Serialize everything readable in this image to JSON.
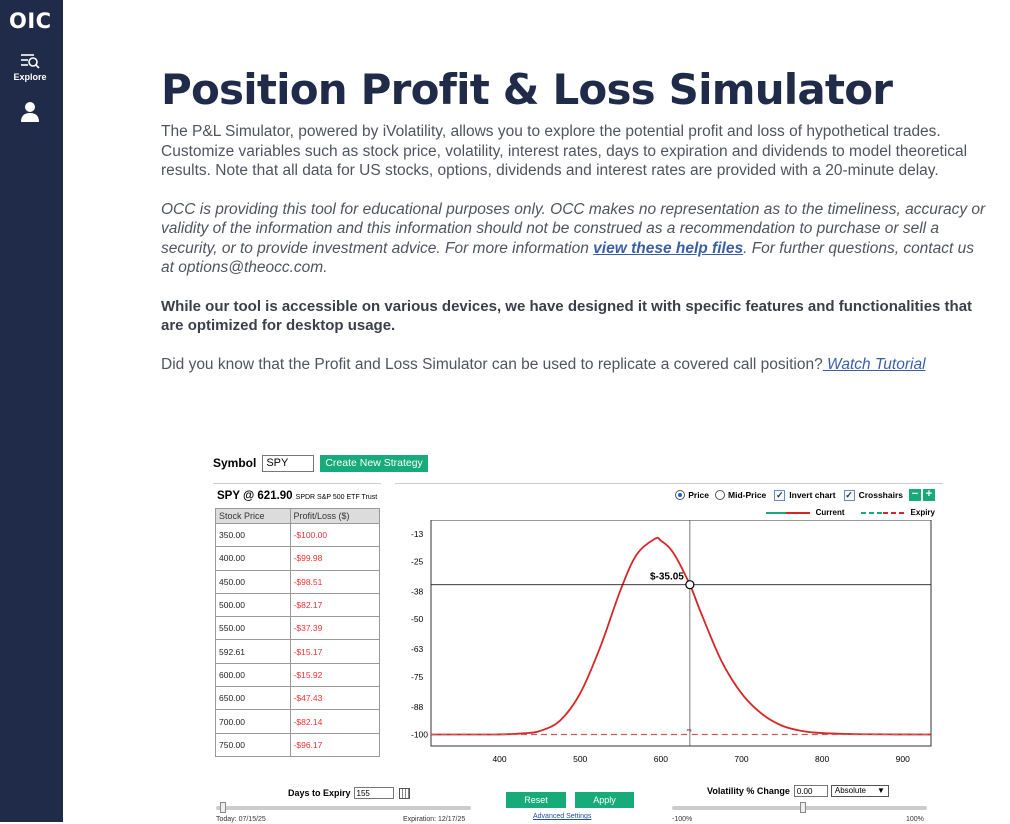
{
  "sidebar": {
    "logo": "OIC",
    "explore_label": "Explore"
  },
  "header": {
    "title": "Position Profit & Loss Simulator"
  },
  "intro": {
    "p1": "The P&L Simulator, powered by iVolatility, allows you to explore the potential profit and loss of hypothetical trades. Customize variables such as stock price, volatility, interest rates, days to expiration and dividends to model theoretical results. Note that all data for US stocks, options, dividends and interest rates are provided with a 20-minute delay.",
    "p2_before": "OCC is providing this tool for educational purposes only. OCC makes no representation as to the timeliness, accuracy or validity of the information and this information should not be construed as a recommendation to purchase or sell a security, or to provide investment advice. For more information ",
    "p2_link": "view these help files",
    "p2_after": ". For further questions, contact us at options@theocc.com.",
    "p3": "While our tool is accessible on various devices, we have designed it with specific features and functionalities that are optimized for desktop usage.",
    "p4_before": "Did you know that the Profit and Loss Simulator can be used to replicate a covered call position?",
    "p4_link": " Watch Tutorial"
  },
  "simulator": {
    "symbol_label": "Symbol",
    "symbol_value": "SPY",
    "create_button": "Create New Strategy",
    "quote_symbol": "SPY @ 621.90",
    "quote_name": "SPDR S&P 500 ETF Trust",
    "table": {
      "headers": [
        "Stock Price",
        "Profit/Loss ($)"
      ],
      "rows": [
        [
          "350.00",
          "-$100.00"
        ],
        [
          "400.00",
          "-$99.98"
        ],
        [
          "450.00",
          "-$98.51"
        ],
        [
          "500.00",
          "-$82.17"
        ],
        [
          "550.00",
          "-$37.39"
        ],
        [
          "592.61",
          "-$15.17"
        ],
        [
          "600.00",
          "-$15.92"
        ],
        [
          "650.00",
          "-$47.43"
        ],
        [
          "700.00",
          "-$82.14"
        ],
        [
          "750.00",
          "-$96.17"
        ]
      ]
    },
    "controls": {
      "price": "Price",
      "mid_price": "Mid-Price",
      "invert": "Invert chart",
      "crosshairs": "Crosshairs",
      "zoom_out": "−",
      "zoom_in": "+",
      "legend_current": "Current",
      "legend_expiry": "Expiry"
    },
    "bottom": {
      "dte_label": "Days to Expiry",
      "dte_value": "155",
      "today_label": "Today: 07/15/25",
      "expiration_label": "Expiration: 12/17/25",
      "reset": "Reset",
      "apply": "Apply",
      "advanced": "Advanced Settings",
      "vol_label": "Volatility % Change",
      "vol_value": "0.00",
      "vol_mode": "Absolute",
      "vol_min": "-100%",
      "vol_max": "100%"
    }
  },
  "chart_data": {
    "type": "line",
    "y_ticks": [
      -13,
      -25,
      -38,
      -50,
      -63,
      -75,
      -88,
      -100
    ],
    "x_ticks": [
      400,
      500,
      600,
      700,
      800,
      900
    ],
    "xlim": [
      315,
      935
    ],
    "ylim": [
      -105,
      -7
    ],
    "crosshair_label": "$-35.05",
    "crosshair": {
      "x": 636,
      "y": -35.05
    },
    "series": [
      {
        "name": "Current",
        "color": "#d42828",
        "style": "solid",
        "x": [
          315,
          350,
          400,
          430,
          450,
          475,
          500,
          525,
          550,
          570,
          592.61,
          600,
          615,
          636,
          650,
          675,
          700,
          725,
          750,
          775,
          800,
          850,
          935
        ],
        "y": [
          -100,
          -100,
          -99.98,
          -99.5,
          -98.51,
          -94,
          -82.17,
          -62,
          -37.39,
          -22,
          -15.17,
          -15.92,
          -21,
          -35.05,
          -47.43,
          -68,
          -82.14,
          -91,
          -96.17,
          -98.5,
          -99.4,
          -99.9,
          -100
        ]
      },
      {
        "name": "Expiry",
        "color": "#c85a5a",
        "style": "dashed",
        "x": [
          315,
          600,
          625,
          633,
          633,
          637,
          637,
          640,
          935
        ],
        "y": [
          -100,
          -100,
          -100,
          -100,
          -98,
          -98,
          -100,
          -100,
          -100
        ]
      }
    ]
  }
}
